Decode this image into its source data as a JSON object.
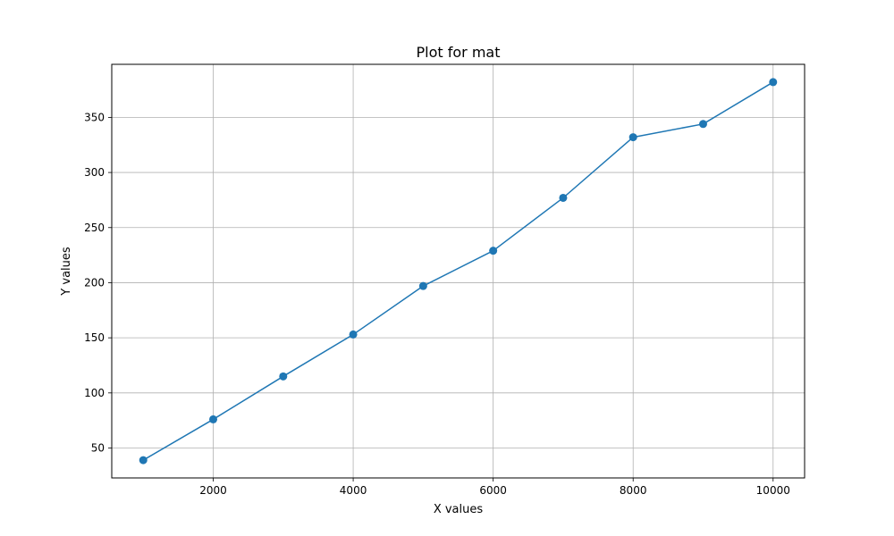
{
  "chart_data": {
    "type": "line",
    "title": "Plot for mat",
    "xlabel": "X values",
    "ylabel": "Y values",
    "x": [
      1000,
      2000,
      3000,
      4000,
      5000,
      6000,
      7000,
      8000,
      9000,
      10000
    ],
    "series": [
      {
        "values": [
          39,
          76,
          115,
          153,
          197,
          229,
          277,
          332,
          344,
          382
        ],
        "color": "#1f77b4",
        "marker": "circle"
      }
    ],
    "xlim": [
      550,
      10450
    ],
    "ylim": [
      22.85,
      398.15
    ],
    "xticks": [
      2000,
      4000,
      6000,
      8000,
      10000
    ],
    "xtick_labels": [
      "2000",
      "4000",
      "6000",
      "8000",
      "10000"
    ],
    "yticks": [
      50,
      100,
      150,
      200,
      250,
      300,
      350
    ],
    "ytick_labels": [
      "50",
      "100",
      "150",
      "200",
      "250",
      "300",
      "350"
    ],
    "grid": true,
    "grid_color": "#b0b0b0",
    "legend": false
  }
}
